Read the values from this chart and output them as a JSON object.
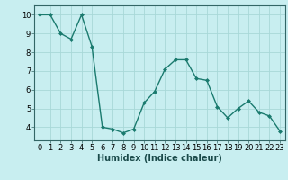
{
  "x": [
    0,
    1,
    2,
    3,
    4,
    5,
    6,
    7,
    8,
    9,
    10,
    11,
    12,
    13,
    14,
    15,
    16,
    17,
    18,
    19,
    20,
    21,
    22,
    23
  ],
  "y": [
    10.0,
    10.0,
    9.0,
    8.7,
    10.0,
    8.3,
    4.0,
    3.9,
    3.7,
    3.9,
    5.3,
    5.9,
    7.1,
    7.6,
    7.6,
    6.6,
    6.5,
    5.1,
    4.5,
    5.0,
    5.4,
    4.8,
    4.6,
    3.8
  ],
  "line_color": "#1a7a6e",
  "marker_color": "#1a7a6e",
  "bg_color": "#c8eef0",
  "grid_color": "#a8d8d8",
  "xlabel": "Humidex (Indice chaleur)",
  "xlabel_fontsize": 7,
  "tick_fontsize": 6,
  "ylim": [
    3.3,
    10.5
  ],
  "xlim": [
    -0.5,
    23.5
  ],
  "yticks": [
    4,
    5,
    6,
    7,
    8,
    9,
    10
  ],
  "xticks": [
    0,
    1,
    2,
    3,
    4,
    5,
    6,
    7,
    8,
    9,
    10,
    11,
    12,
    13,
    14,
    15,
    16,
    17,
    18,
    19,
    20,
    21,
    22,
    23
  ]
}
